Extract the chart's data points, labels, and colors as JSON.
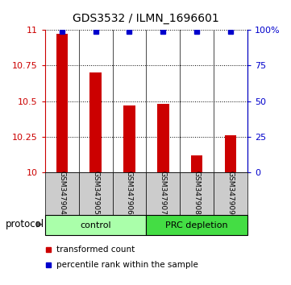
{
  "title": "GDS3532 / ILMN_1696601",
  "samples": [
    "GSM347904",
    "GSM347905",
    "GSM347906",
    "GSM347907",
    "GSM347908",
    "GSM347909"
  ],
  "transformed_counts": [
    10.97,
    10.7,
    10.47,
    10.48,
    10.12,
    10.26
  ],
  "percentile_ranks": [
    99,
    99,
    99,
    99,
    99,
    99
  ],
  "ylim_left": [
    10,
    11
  ],
  "ylim_right": [
    0,
    100
  ],
  "yticks_left": [
    10,
    10.25,
    10.5,
    10.75,
    11
  ],
  "yticks_right": [
    0,
    25,
    50,
    75,
    100
  ],
  "ytick_labels_left": [
    "10",
    "10.25",
    "10.5",
    "10.75",
    "11"
  ],
  "ytick_labels_right": [
    "0",
    "25",
    "50",
    "75",
    "100%"
  ],
  "groups": [
    {
      "label": "control",
      "indices": [
        0,
        1,
        2
      ],
      "color": "#aaffaa"
    },
    {
      "label": "PRC depletion",
      "indices": [
        3,
        4,
        5
      ],
      "color": "#44dd44"
    }
  ],
  "bar_color": "#cc0000",
  "marker_color": "#0000cc",
  "bar_width": 0.35,
  "bar_bottom": 10,
  "protocol_label": "protocol",
  "legend_items": [
    {
      "color": "#cc0000",
      "label": "transformed count"
    },
    {
      "color": "#0000cc",
      "label": "percentile rank within the sample"
    }
  ],
  "bg_color": "#ffffff",
  "tick_label_color_left": "#cc0000",
  "tick_label_color_right": "#0000cc",
  "xlabel_area_color": "#cccccc"
}
